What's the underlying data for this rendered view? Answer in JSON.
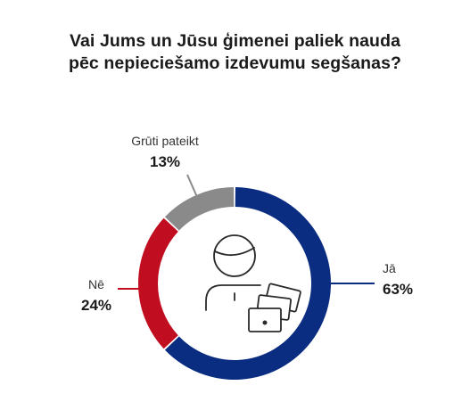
{
  "title": {
    "line1": "Vai Jums un Jūsu ģimenei paliek nauda",
    "line2": "pēc nepieciešamo izdevumu segšanas?"
  },
  "colors": {
    "ja": "#0a2d82",
    "ne": "#c00d20",
    "gruti": "#8a8a8a",
    "icon": "#2a2a2a"
  },
  "icon": {
    "name": "person-with-cards-icon"
  },
  "chart_data": {
    "type": "pie",
    "donut": true,
    "title": "Vai Jums un Jūsu ģimenei paliek nauda pēc nepieciešamo izdevumu segšanas?",
    "unit": "%",
    "slices": [
      {
        "label": "Jā",
        "value": 63,
        "value_label": "63%"
      },
      {
        "label": "Nē",
        "value": 24,
        "value_label": "24%"
      },
      {
        "label": "Grūti pateikt",
        "value": 13,
        "value_label": "13%"
      }
    ]
  }
}
